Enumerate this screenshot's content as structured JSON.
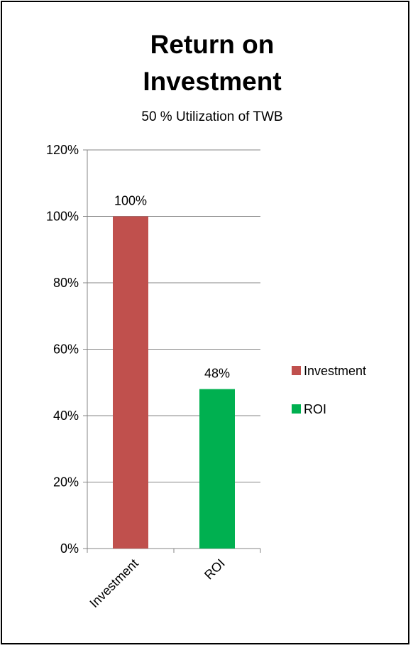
{
  "chart_data": {
    "type": "bar",
    "title_lines": [
      "Return on",
      "Investment"
    ],
    "subtitle": "50 % Utilization of TWB",
    "categories": [
      "Investment",
      "ROI"
    ],
    "values": [
      100,
      48
    ],
    "data_labels": [
      "100%",
      "48%"
    ],
    "colors": [
      "#c0504d",
      "#00b050"
    ],
    "y_ticks": [
      0,
      20,
      40,
      60,
      80,
      100,
      120
    ],
    "y_tick_labels": [
      "0%",
      "20%",
      "40%",
      "60%",
      "80%",
      "100%",
      "120%"
    ],
    "ylim": [
      0,
      120
    ],
    "grid": true,
    "legend": {
      "position": "right",
      "entries": [
        {
          "label": "Investment",
          "color": "#c0504d"
        },
        {
          "label": "ROI",
          "color": "#00b050"
        }
      ]
    }
  }
}
